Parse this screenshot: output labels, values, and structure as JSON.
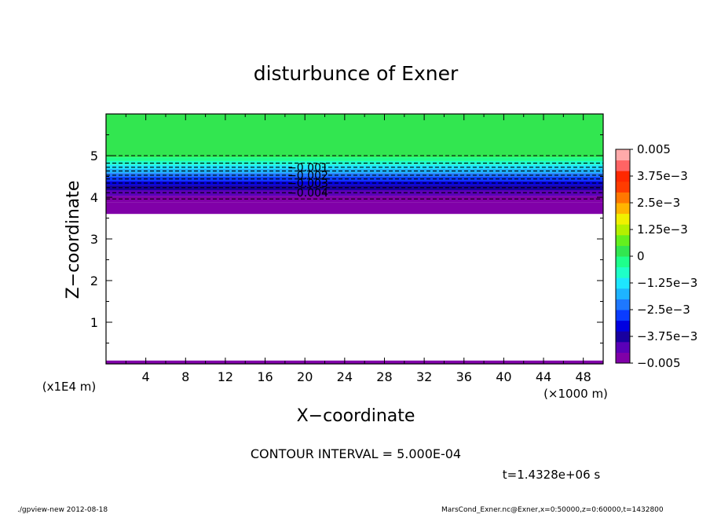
{
  "chart_data": {
    "type": "heatmap",
    "title": "disturbunce of Exner",
    "xlabel": "X−coordinate",
    "ylabel": "Z−coordinate",
    "x_unit": "(×1000 m)",
    "y_unit": "(x1E4 m)",
    "xlim": [
      0,
      50
    ],
    "ylim": [
      0,
      6
    ],
    "x_ticks": [
      4,
      8,
      12,
      16,
      20,
      24,
      28,
      32,
      36,
      40,
      44,
      48
    ],
    "y_ticks": [
      1,
      2,
      3,
      4,
      5
    ],
    "contour_interval_text": "CONTOUR INTERVAL = 5.000E-04",
    "time_text": "t=1.4328e+06 s",
    "footer_left": "./gpview-new   2012-08-18",
    "footer_right": "MarsCond_Exner.nc@Exner,x=0:50000,z=0:60000,t=1432800",
    "colorbar": {
      "range": [
        -0.005,
        0.005
      ],
      "step": 0.0005,
      "tick_labels": [
        "0.005",
        "3.75e−3",
        "2.5e−3",
        "1.25e−3",
        "0",
        "−1.25e−3",
        "−2.5e−3",
        "−3.75e−3",
        "−0.005"
      ],
      "tick_values": [
        0.005,
        0.00375,
        0.0025,
        0.00125,
        0,
        -0.00125,
        -0.0025,
        -0.00375,
        -0.005
      ],
      "colors": [
        "#8000a8",
        "#5a00b8",
        "#1800a0",
        "#0000e0",
        "#0a3cff",
        "#1e78ff",
        "#1eb4ff",
        "#1ee6ff",
        "#1effc8",
        "#1eff8c",
        "#32e650",
        "#64f01e",
        "#b4f000",
        "#f0f000",
        "#ffb400",
        "#ff7800",
        "#ff3c00",
        "#ff2800",
        "#ff6464",
        "#ffaaaa"
      ]
    },
    "bands": [
      {
        "z_from": 4.96,
        "z_to": 6.0,
        "value": 0.0
      },
      {
        "z_from": 4.87,
        "z_to": 4.96,
        "value": -0.00025
      },
      {
        "z_from": 4.78,
        "z_to": 4.87,
        "value": -0.00075
      },
      {
        "z_from": 4.68,
        "z_to": 4.78,
        "value": -0.00125
      },
      {
        "z_from": 4.58,
        "z_to": 4.68,
        "value": -0.00175
      },
      {
        "z_from": 4.49,
        "z_to": 4.58,
        "value": -0.00225
      },
      {
        "z_from": 4.39,
        "z_to": 4.49,
        "value": -0.00275
      },
      {
        "z_from": 4.29,
        "z_to": 4.39,
        "value": -0.00325
      },
      {
        "z_from": 4.17,
        "z_to": 4.29,
        "value": -0.00375
      },
      {
        "z_from": 4.03,
        "z_to": 4.17,
        "value": -0.00425
      },
      {
        "z_from": 3.88,
        "z_to": 4.03,
        "value": -0.00475
      },
      {
        "z_from": 3.6,
        "z_to": 3.88,
        "value": -0.005
      },
      {
        "z_from": 0.0,
        "z_to": 0.08,
        "value": -0.005
      }
    ],
    "contours": [
      {
        "z": 5.0,
        "value": 0.0,
        "label": ""
      },
      {
        "z": 4.82,
        "value": -0.0005,
        "label": ""
      },
      {
        "z": 4.72,
        "value": -0.001,
        "label": "−0.001"
      },
      {
        "z": 4.63,
        "value": -0.0015,
        "label": ""
      },
      {
        "z": 4.53,
        "value": -0.002,
        "label": "−0.002"
      },
      {
        "z": 4.44,
        "value": -0.0025,
        "label": ""
      },
      {
        "z": 4.34,
        "value": -0.003,
        "label": "−0.003"
      },
      {
        "z": 4.23,
        "value": -0.0035,
        "label": ""
      },
      {
        "z": 4.11,
        "value": -0.004,
        "label": "−0.004"
      },
      {
        "z": 3.96,
        "value": -0.0045,
        "label": ""
      }
    ]
  }
}
